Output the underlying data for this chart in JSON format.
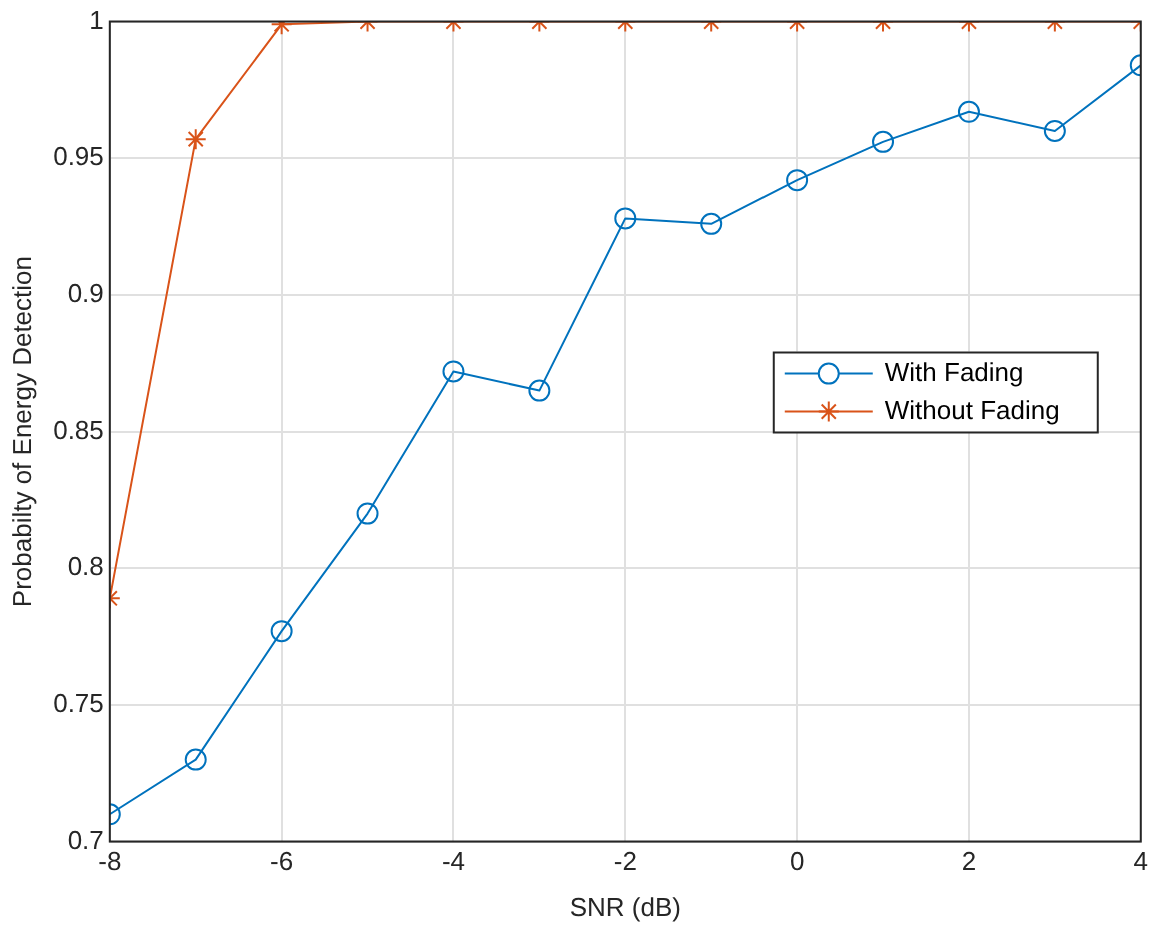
{
  "chart_data": {
    "type": "line",
    "xlabel": "SNR (dB)",
    "ylabel": "Probabilty of Energy Detection",
    "x": [
      -8,
      -7,
      -6,
      -5,
      -4,
      -3,
      -2,
      -1,
      0,
      1,
      2,
      3,
      4
    ],
    "series": [
      {
        "name": "With Fading",
        "color": "#0072bd",
        "marker": "circle",
        "values": [
          0.71,
          0.73,
          0.777,
          0.82,
          0.872,
          0.865,
          0.928,
          0.926,
          0.942,
          0.956,
          0.967,
          0.96,
          0.984
        ]
      },
      {
        "name": "Without Fading",
        "color": "#d95319",
        "marker": "cross",
        "values": [
          0.789,
          0.957,
          0.999,
          1,
          1,
          1,
          1,
          1,
          1,
          1,
          1,
          1,
          1
        ]
      }
    ],
    "xlim": [
      -8,
      4
    ],
    "xticks": [
      -8,
      -6,
      -4,
      -2,
      0,
      2,
      4
    ],
    "ylim": [
      0.7,
      1
    ],
    "yticks": [
      0.7,
      0.75,
      0.8,
      0.85,
      0.9,
      0.95,
      1
    ],
    "grid": true,
    "legend": "right",
    "line_style": "solid"
  }
}
